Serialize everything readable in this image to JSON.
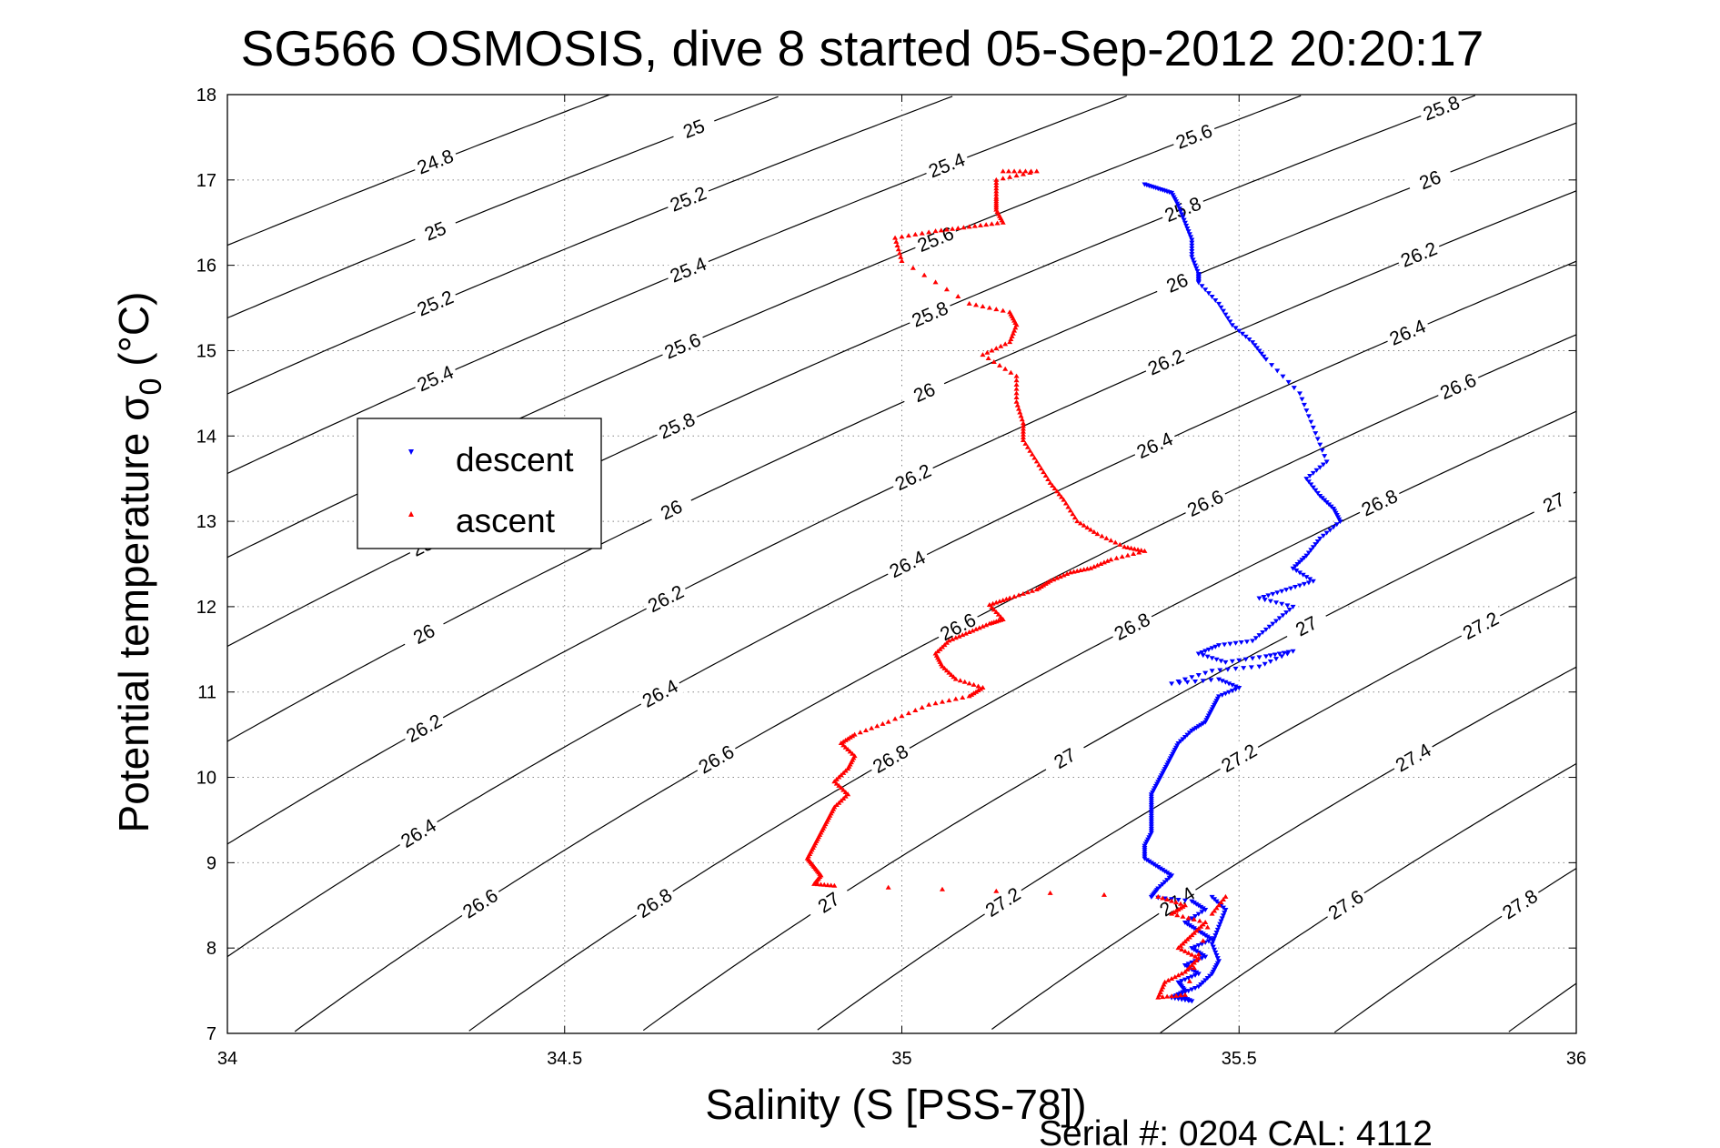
{
  "chart_data": {
    "type": "scatter",
    "title": "SG566 OSMOSIS, dive 8 started 05-Sep-2012 20:20:17",
    "xlabel": "Salinity (S [PSS-78])",
    "ylabel_main": "Potential temperature ",
    "ylabel_sigma": "σ",
    "ylabel_sub": "0",
    "ylabel_unit": " (°C)",
    "footer": "Serial #: 0204  CAL: 4112",
    "xlim": [
      34,
      36
    ],
    "ylim": [
      7,
      18
    ],
    "x_ticks": [
      "34",
      "34.5",
      "35",
      "35.5",
      "36"
    ],
    "y_ticks": [
      "7",
      "8",
      "9",
      "10",
      "11",
      "12",
      "13",
      "14",
      "15",
      "16",
      "17",
      "18"
    ],
    "grid": true,
    "legend_position": "upper-left",
    "contour_levels": [
      "24.8",
      "25",
      "25.2",
      "25.4",
      "25.6",
      "25.8",
      "26",
      "26.2",
      "26.4",
      "26.6",
      "26.8",
      "27",
      "27.2",
      "27.4",
      "27.6",
      "27.8",
      "28"
    ],
    "series": [
      {
        "name": "descent",
        "color": "#0000ff",
        "marker": "triangle-down",
        "points": [
          [
            35.36,
            16.95
          ],
          [
            35.38,
            16.9
          ],
          [
            35.4,
            16.85
          ],
          [
            35.41,
            16.7
          ],
          [
            35.42,
            16.5
          ],
          [
            35.43,
            16.3
          ],
          [
            35.43,
            16.1
          ],
          [
            35.44,
            15.9
          ],
          [
            35.44,
            15.8
          ],
          [
            35.47,
            15.55
          ],
          [
            35.49,
            15.3
          ],
          [
            35.52,
            15.1
          ],
          [
            35.54,
            14.9
          ],
          [
            35.59,
            14.5
          ],
          [
            35.61,
            14.1
          ],
          [
            35.63,
            13.7
          ],
          [
            35.6,
            13.5
          ],
          [
            35.62,
            13.3
          ],
          [
            35.64,
            13.15
          ],
          [
            35.65,
            13.0
          ],
          [
            35.62,
            12.8
          ],
          [
            35.6,
            12.6
          ],
          [
            35.58,
            12.45
          ],
          [
            35.61,
            12.3
          ],
          [
            35.57,
            12.2
          ],
          [
            35.53,
            12.1
          ],
          [
            35.58,
            12.0
          ],
          [
            35.55,
            11.8
          ],
          [
            35.52,
            11.6
          ],
          [
            35.47,
            11.55
          ],
          [
            35.44,
            11.45
          ],
          [
            35.48,
            11.35
          ],
          [
            35.54,
            11.42
          ],
          [
            35.58,
            11.48
          ],
          [
            35.53,
            11.3
          ],
          [
            35.46,
            11.25
          ],
          [
            35.4,
            11.1
          ],
          [
            35.47,
            11.15
          ],
          [
            35.5,
            11.05
          ],
          [
            35.47,
            10.95
          ],
          [
            35.46,
            10.8
          ],
          [
            35.45,
            10.65
          ],
          [
            35.43,
            10.55
          ],
          [
            35.41,
            10.4
          ],
          [
            35.4,
            10.25
          ],
          [
            35.39,
            10.1
          ],
          [
            35.38,
            9.95
          ],
          [
            35.37,
            9.8
          ],
          [
            35.37,
            9.65
          ],
          [
            35.37,
            9.5
          ],
          [
            35.37,
            9.35
          ],
          [
            35.36,
            9.2
          ],
          [
            35.36,
            9.05
          ],
          [
            35.38,
            8.95
          ],
          [
            35.4,
            8.85
          ],
          [
            35.38,
            8.7
          ],
          [
            35.37,
            8.6
          ],
          [
            35.43,
            8.55
          ],
          [
            35.45,
            8.45
          ],
          [
            35.42,
            8.3
          ],
          [
            35.44,
            8.2
          ],
          [
            35.46,
            8.1
          ],
          [
            35.43,
            8.0
          ],
          [
            35.45,
            7.9
          ],
          [
            35.42,
            7.8
          ],
          [
            35.44,
            7.7
          ],
          [
            35.41,
            7.6
          ],
          [
            35.42,
            7.5
          ],
          [
            35.4,
            7.42
          ],
          [
            35.43,
            7.38
          ],
          [
            35.41,
            7.45
          ],
          [
            35.44,
            7.55
          ],
          [
            35.46,
            7.7
          ],
          [
            35.47,
            7.85
          ],
          [
            35.46,
            8.05
          ],
          [
            35.47,
            8.25
          ],
          [
            35.48,
            8.45
          ],
          [
            35.46,
            8.6
          ]
        ]
      },
      {
        "name": "ascent",
        "color": "#ff0000",
        "marker": "triangle-up",
        "points": [
          [
            35.15,
            17.1
          ],
          [
            35.2,
            17.1
          ],
          [
            35.14,
            17.0
          ],
          [
            35.14,
            16.8
          ],
          [
            35.14,
            16.65
          ],
          [
            35.15,
            16.5
          ],
          [
            35.1,
            16.45
          ],
          [
            35.05,
            16.4
          ],
          [
            34.99,
            16.32
          ],
          [
            35.0,
            16.05
          ],
          [
            35.1,
            15.55
          ],
          [
            35.16,
            15.45
          ],
          [
            35.17,
            15.3
          ],
          [
            35.16,
            15.1
          ],
          [
            35.12,
            14.95
          ],
          [
            35.17,
            14.7
          ],
          [
            35.17,
            14.4
          ],
          [
            35.18,
            14.15
          ],
          [
            35.18,
            13.95
          ],
          [
            35.2,
            13.7
          ],
          [
            35.22,
            13.45
          ],
          [
            35.24,
            13.25
          ],
          [
            35.26,
            13.0
          ],
          [
            35.29,
            12.85
          ],
          [
            35.33,
            12.7
          ],
          [
            35.36,
            12.65
          ],
          [
            35.31,
            12.55
          ],
          [
            35.28,
            12.45
          ],
          [
            35.25,
            12.4
          ],
          [
            35.22,
            12.3
          ],
          [
            35.2,
            12.2
          ],
          [
            35.16,
            12.1
          ],
          [
            35.13,
            12.02
          ],
          [
            35.15,
            11.85
          ],
          [
            35.13,
            11.8
          ],
          [
            35.1,
            11.7
          ],
          [
            35.07,
            11.6
          ],
          [
            35.05,
            11.45
          ],
          [
            35.06,
            11.3
          ],
          [
            35.08,
            11.15
          ],
          [
            35.12,
            11.05
          ],
          [
            35.1,
            10.95
          ],
          [
            35.04,
            10.85
          ],
          [
            34.98,
            10.65
          ],
          [
            34.93,
            10.5
          ],
          [
            34.91,
            10.4
          ],
          [
            34.93,
            10.25
          ],
          [
            34.92,
            10.1
          ],
          [
            34.9,
            9.95
          ],
          [
            34.92,
            9.8
          ],
          [
            34.9,
            9.65
          ],
          [
            34.89,
            9.5
          ],
          [
            34.88,
            9.35
          ],
          [
            34.87,
            9.2
          ],
          [
            34.86,
            9.05
          ],
          [
            34.87,
            8.95
          ],
          [
            34.88,
            8.85
          ],
          [
            34.87,
            8.75
          ],
          [
            34.9,
            8.73
          ],
          [
            35.38,
            8.6
          ],
          [
            35.42,
            8.5
          ],
          [
            35.4,
            8.4
          ],
          [
            35.45,
            8.3
          ],
          [
            35.43,
            8.15
          ],
          [
            35.41,
            8.0
          ],
          [
            35.44,
            7.88
          ],
          [
            35.42,
            7.72
          ],
          [
            35.39,
            7.6
          ],
          [
            35.38,
            7.42
          ],
          [
            35.42,
            7.45
          ],
          [
            35.46,
            8.4
          ],
          [
            35.48,
            8.6
          ]
        ]
      }
    ]
  }
}
